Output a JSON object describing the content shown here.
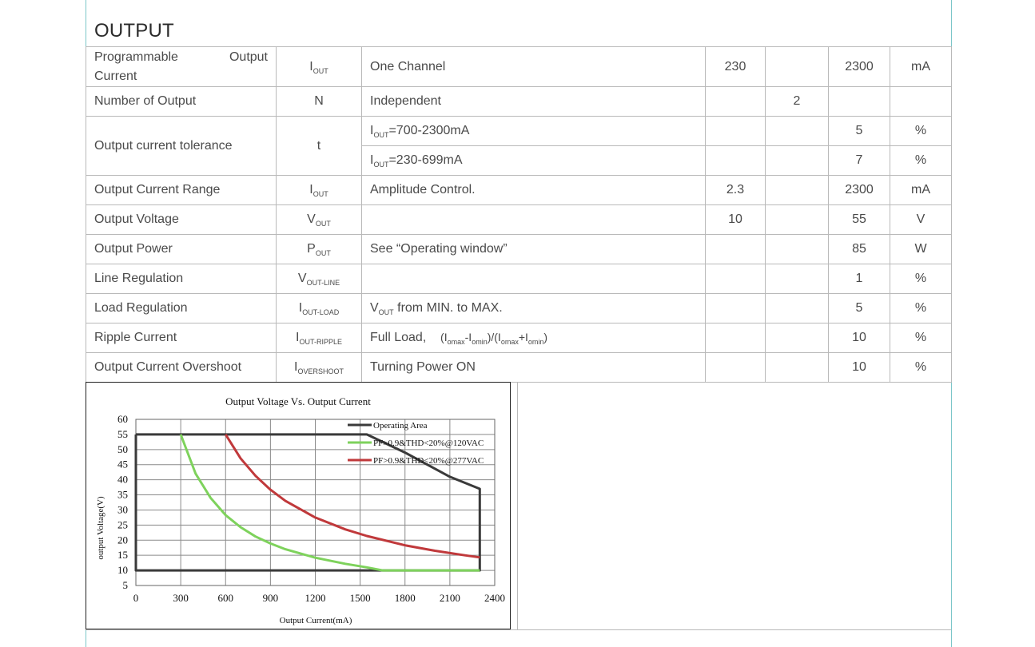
{
  "section_title": "OUTPUT",
  "rows": {
    "prog_current": {
      "param_a": "Programmable",
      "param_b": "Output",
      "param_c": "Current",
      "sym": "I",
      "sym_sub": "OUT",
      "cond": "One Channel",
      "min": "230",
      "typ": "",
      "max": "2300",
      "unit": "mA"
    },
    "num_output": {
      "param": "Number of Output",
      "sym": "N",
      "cond": "Independent",
      "min": "",
      "typ": "2",
      "max": "",
      "unit": ""
    },
    "tolerance": {
      "param": "Output current tolerance",
      "sym": "t",
      "sub1": {
        "cond_sym": "I",
        "cond_sub": "OUT",
        "cond_rest": "=700-2300mA",
        "max": "5",
        "unit": "%"
      },
      "sub2": {
        "cond_sym": "I",
        "cond_sub": "OUT",
        "cond_rest": "=230-699mA",
        "max": "7",
        "unit": "%"
      }
    },
    "current_range": {
      "param": "Output Current Range",
      "sym": "I",
      "sym_sub": "OUT",
      "cond": "Amplitude Control.",
      "min": "2.3",
      "max": "2300",
      "unit": "mA"
    },
    "voltage": {
      "param": "Output Voltage",
      "sym": "V",
      "sym_sub": "OUT",
      "cond": "",
      "min": "10",
      "max": "55",
      "unit": "V"
    },
    "power": {
      "param": "Output Power",
      "sym": "P",
      "sym_sub": "OUT",
      "cond": "See “Operating window”",
      "min": "",
      "max": "85",
      "unit": "W"
    },
    "line_reg": {
      "param": "Line Regulation",
      "sym": "V",
      "sym_sub": "OUT-LINE",
      "cond": "",
      "max": "1",
      "unit": "%"
    },
    "load_reg": {
      "param": "Load Regulation",
      "sym": "I",
      "sym_sub": "OUT-LOAD",
      "cond_sym": "V",
      "cond_sub": "OUT",
      "cond_rest": " from MIN. to MAX.",
      "max": "5",
      "unit": "%"
    },
    "ripple": {
      "param": "Ripple Current",
      "sym": "I",
      "sym_sub": "OUT-RIPPLE",
      "cond_a": "Full Load,",
      "cond_b": "(I",
      "cond_b_sub": "omax",
      "cond_c": "-I",
      "cond_c_sub": "omin",
      "cond_d": ")/(I",
      "cond_d_sub": "omax",
      "cond_e": "+I",
      "cond_e_sub": "omin",
      "cond_f": ")",
      "max": "10",
      "unit": "%"
    },
    "overshoot": {
      "param": "Output Current Overshoot",
      "sym": "I",
      "sym_sub": "OVERSHOOT",
      "cond": "Turning Power ON",
      "max": "10",
      "unit": "%"
    }
  },
  "chart_data": {
    "type": "line",
    "title": "Output Voltage Vs. Output Current",
    "xlabel": "Output Current(mA)",
    "ylabel": "output Voltage(V)",
    "xlim": [
      0,
      2400
    ],
    "ylim": [
      5,
      60
    ],
    "xticks": [
      "0",
      "300",
      "600",
      "900",
      "1200",
      "1500",
      "1800",
      "2100",
      "2400"
    ],
    "yticks": [
      "5",
      "10",
      "15",
      "20",
      "25",
      "30",
      "35",
      "40",
      "45",
      "50",
      "55",
      "60"
    ],
    "grid": true,
    "legend_position": "top-right",
    "series": [
      {
        "name": "Operating Area",
        "color": "#3a3a3a",
        "x": [
          0,
          1545,
          1800,
          2100,
          2300,
          2300,
          0,
          0
        ],
        "y": [
          55,
          55,
          49,
          41,
          37,
          10,
          10,
          55
        ]
      },
      {
        "name": "PF>0.9&THD<20%@120VAC",
        "color": "#7ed25c",
        "x": [
          300,
          400,
          500,
          600,
          700,
          800,
          900,
          1000,
          1200,
          1400,
          1545,
          1650,
          2300
        ],
        "y": [
          55,
          42,
          34,
          28.3,
          24.3,
          21.2,
          18.9,
          17,
          14.2,
          12.2,
          11,
          10,
          10
        ]
      },
      {
        "name": "PF>0.9&THD<20%@277VAC",
        "color": "#c0393b",
        "x": [
          600,
          700,
          800,
          900,
          1000,
          1200,
          1400,
          1545,
          1800,
          2000,
          2200,
          2300
        ],
        "y": [
          55,
          47.1,
          41.3,
          36.7,
          33,
          27.5,
          23.6,
          21.4,
          18.3,
          16.5,
          15,
          14.3
        ]
      }
    ]
  }
}
